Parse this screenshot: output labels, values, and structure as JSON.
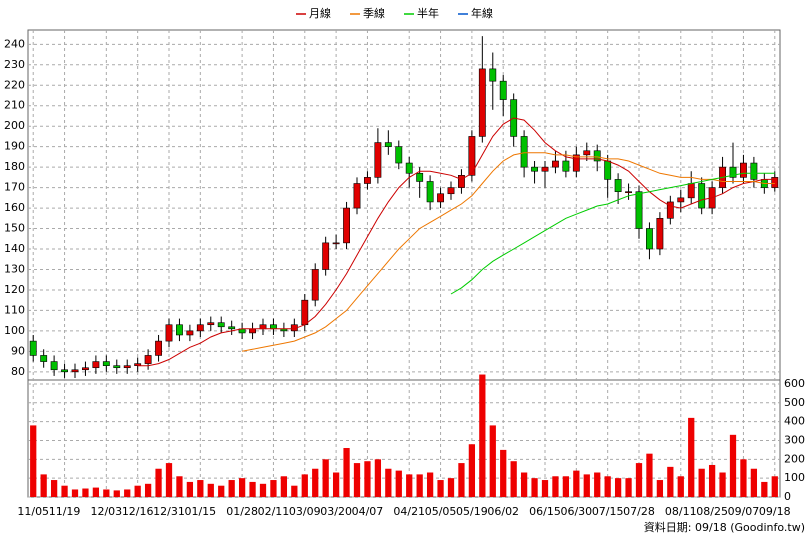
{
  "chart_data": {
    "type": "candlestick",
    "legend": "top",
    "grid": true,
    "footer": "資料日期: 09/18 (Goodinfo.tw)",
    "up_color": "#e00000",
    "down_color": "#00c000",
    "categories": [
      "11/05",
      null,
      null,
      "11/19",
      null,
      null,
      null,
      "12/03",
      null,
      null,
      "12/16",
      null,
      null,
      "12/31",
      null,
      null,
      "01/15",
      null,
      null,
      null,
      "01/28",
      null,
      null,
      "02/11",
      null,
      null,
      "03/09",
      null,
      null,
      "03/20",
      null,
      null,
      "04/07",
      null,
      null,
      null,
      "04/21",
      null,
      null,
      "05/05",
      null,
      null,
      "05/19",
      null,
      null,
      "06/02",
      null,
      null,
      null,
      "06/15",
      null,
      null,
      "06/30",
      null,
      null,
      "07/15",
      null,
      null,
      "07/28",
      null,
      null,
      null,
      "08/11",
      null,
      null,
      "08/25",
      null,
      null,
      "09/07",
      null,
      null,
      "09/18"
    ],
    "open": [
      95,
      88,
      85,
      81,
      80,
      81,
      82,
      85,
      83,
      82,
      83,
      84,
      88,
      95,
      103,
      98,
      100,
      103,
      104,
      102,
      101,
      99,
      101,
      103,
      101,
      100,
      103,
      115,
      130,
      143,
      143,
      160,
      172,
      175,
      192,
      190,
      182,
      177,
      173,
      163,
      167,
      170,
      176,
      195,
      228,
      222,
      213,
      195,
      180,
      178,
      180,
      183,
      178,
      186,
      188,
      183,
      174,
      168,
      168,
      150,
      140,
      155,
      163,
      165,
      172,
      160,
      170,
      180,
      175,
      182,
      174,
      170
    ],
    "high": [
      98,
      91,
      88,
      84,
      84,
      85,
      88,
      88,
      86,
      86,
      87,
      91,
      98,
      106,
      106,
      103,
      106,
      107,
      107,
      105,
      104,
      104,
      106,
      106,
      104,
      106,
      118,
      133,
      146,
      147,
      163,
      175,
      178,
      199,
      198,
      193,
      185,
      180,
      176,
      170,
      173,
      179,
      198,
      244,
      236,
      225,
      216,
      198,
      183,
      183,
      188,
      188,
      190,
      192,
      191,
      186,
      177,
      172,
      171,
      153,
      158,
      166,
      169,
      178,
      175,
      173,
      185,
      192,
      186,
      185,
      177,
      178
    ],
    "low": [
      85,
      82,
      78,
      77,
      77,
      78,
      79,
      80,
      79,
      79,
      80,
      81,
      85,
      92,
      95,
      95,
      97,
      100,
      99,
      98,
      96,
      96,
      98,
      98,
      97,
      97,
      100,
      112,
      127,
      140,
      140,
      157,
      169,
      172,
      186,
      179,
      170,
      165,
      159,
      160,
      164,
      167,
      173,
      192,
      208,
      205,
      190,
      175,
      172,
      170,
      177,
      175,
      175,
      183,
      178,
      165,
      162,
      164,
      145,
      135,
      137,
      152,
      158,
      162,
      157,
      157,
      167,
      172,
      172,
      170,
      167,
      168
    ],
    "close": [
      88,
      85,
      81,
      80,
      81,
      82,
      85,
      83,
      82,
      83,
      84,
      88,
      95,
      103,
      98,
      100,
      103,
      104,
      102,
      101,
      99,
      101,
      103,
      101,
      100,
      103,
      115,
      130,
      143,
      143,
      160,
      172,
      175,
      192,
      190,
      182,
      177,
      173,
      163,
      167,
      170,
      176,
      195,
      228,
      222,
      213,
      195,
      180,
      178,
      180,
      183,
      178,
      186,
      188,
      183,
      174,
      168,
      168,
      150,
      140,
      155,
      163,
      165,
      172,
      160,
      170,
      180,
      175,
      182,
      174,
      170,
      175
    ],
    "volume": {
      "color": "#ee0000",
      "values": [
        380,
        120,
        90,
        60,
        40,
        45,
        50,
        40,
        35,
        40,
        60,
        70,
        150,
        180,
        110,
        80,
        90,
        70,
        60,
        90,
        100,
        80,
        70,
        90,
        110,
        60,
        120,
        150,
        200,
        130,
        260,
        180,
        190,
        200,
        150,
        140,
        120,
        120,
        130,
        90,
        100,
        180,
        280,
        650,
        380,
        250,
        190,
        130,
        100,
        90,
        110,
        110,
        140,
        120,
        130,
        110,
        100,
        100,
        180,
        230,
        90,
        160,
        110,
        420,
        150,
        170,
        130,
        330,
        200,
        150,
        80,
        110
      ]
    },
    "series": [
      {
        "name": "月線",
        "color": "#cc0000",
        "values": [
          null,
          null,
          null,
          null,
          null,
          null,
          null,
          null,
          null,
          null,
          83,
          83,
          84,
          86,
          89,
          92,
          94,
          97,
          99,
          100,
          101,
          101,
          101,
          101,
          101,
          101,
          103,
          107,
          113,
          120,
          128,
          137,
          146,
          155,
          163,
          170,
          175,
          178,
          178,
          177,
          176,
          174,
          177,
          186,
          195,
          201,
          204,
          203,
          198,
          192,
          188,
          185,
          184,
          184,
          184,
          183,
          181,
          178,
          173,
          168,
          164,
          161,
          160,
          162,
          164,
          165,
          167,
          170,
          172,
          173,
          174,
          174
        ]
      },
      {
        "name": "季線",
        "color": "#ee7700",
        "values": [
          null,
          null,
          null,
          null,
          null,
          null,
          null,
          null,
          null,
          null,
          null,
          null,
          null,
          null,
          null,
          null,
          null,
          null,
          null,
          null,
          90,
          91,
          92,
          93,
          94,
          95,
          97,
          99,
          102,
          106,
          110,
          116,
          122,
          128,
          134,
          140,
          145,
          150,
          153,
          156,
          159,
          162,
          166,
          172,
          178,
          183,
          186,
          187,
          187,
          187,
          186,
          186,
          185,
          185,
          185,
          184,
          184,
          183,
          181,
          179,
          177,
          176,
          175,
          175,
          174,
          174,
          173,
          173,
          173,
          173,
          172,
          172
        ]
      },
      {
        "name": "半年",
        "color": "#00cc00",
        "values": [
          null,
          null,
          null,
          null,
          null,
          null,
          null,
          null,
          null,
          null,
          null,
          null,
          null,
          null,
          null,
          null,
          null,
          null,
          null,
          null,
          null,
          null,
          null,
          null,
          null,
          null,
          null,
          null,
          null,
          null,
          null,
          null,
          null,
          null,
          null,
          null,
          null,
          null,
          null,
          null,
          118,
          121,
          125,
          130,
          134,
          137,
          140,
          143,
          146,
          149,
          152,
          155,
          157,
          159,
          161,
          162,
          164,
          166,
          167,
          168,
          169,
          170,
          171,
          172,
          173,
          174,
          175,
          176,
          177,
          177,
          177,
          177
        ]
      },
      {
        "name": "年線",
        "color": "#0055cc",
        "values": [
          null,
          null,
          null,
          null,
          null,
          null,
          null,
          null,
          null,
          null,
          null,
          null,
          null,
          null,
          null,
          null,
          null,
          null,
          null,
          null,
          null,
          null,
          null,
          null,
          null,
          null,
          null,
          null,
          null,
          null,
          null,
          null,
          null,
          null,
          null,
          null,
          null,
          null,
          null,
          null,
          null,
          null,
          null,
          null,
          null,
          null,
          null,
          null,
          null,
          null,
          null,
          null,
          null,
          null,
          null,
          null,
          null,
          null,
          null,
          null,
          null,
          null,
          null,
          null,
          null,
          null,
          null,
          null,
          null,
          null,
          null,
          null
        ]
      }
    ],
    "ylim": [
      76,
      247
    ],
    "yticks": [
      80,
      90,
      100,
      110,
      120,
      130,
      140,
      150,
      160,
      170,
      180,
      190,
      200,
      210,
      220,
      230,
      240
    ],
    "y2lim": [
      0,
      621
    ],
    "y2ticks": [
      0,
      100,
      200,
      300,
      400,
      500,
      600
    ]
  }
}
